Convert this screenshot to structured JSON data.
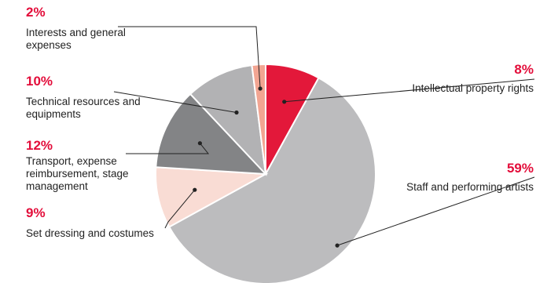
{
  "chart_data": {
    "type": "pie",
    "title": "",
    "slices": [
      {
        "label": "Intellectual property rights",
        "value": 8,
        "value_label": "8%",
        "color": "#e3183a"
      },
      {
        "label": "Staff and performing artists",
        "value": 59,
        "value_label": "59%",
        "color": "#bcbcbe"
      },
      {
        "label": "Set dressing and costumes",
        "value": 9,
        "value_label": "9%",
        "color": "#f9dcd4"
      },
      {
        "label": "Transport, expense reimbursement, stage management",
        "value": 12,
        "value_label": "12%",
        "color": "#838486"
      },
      {
        "label": "Technical resources and equipments",
        "value": 10,
        "value_label": "10%",
        "color": "#b2b2b4"
      },
      {
        "label": "Interests and general expenses",
        "value": 2,
        "value_label": "2%",
        "color": "#f2a592"
      }
    ],
    "start": "12 o'clock",
    "direction": "clockwise",
    "accent_color": "#e30d3a"
  }
}
